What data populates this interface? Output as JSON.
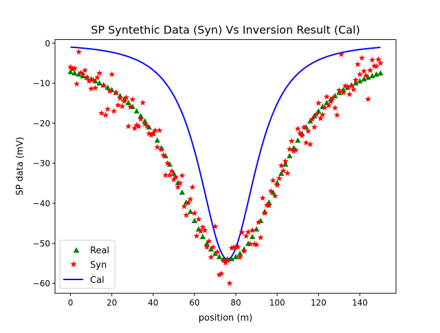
{
  "chart_data": {
    "type": "scatter",
    "title": "SP Syntethic Data (Syn) Vs Inversion Result (Cal)",
    "xlabel": "position (m)",
    "ylabel": "SP data (mV)",
    "xlim": [
      -7.5,
      157.5
    ],
    "ylim": [
      -62.5,
      0.9
    ],
    "x_ticks": [
      0,
      20,
      40,
      60,
      80,
      100,
      120,
      140
    ],
    "y_ticks": [
      0,
      -10,
      -20,
      -30,
      -40,
      -50,
      -60
    ],
    "grid": false,
    "legend_position": "lower-left",
    "legend": [
      "Real",
      "Syn",
      "Cal"
    ],
    "source": {
      "x0": 76,
      "K": 54,
      "x_half": 27.1,
      "q": 1.5
    },
    "series": [
      {
        "name": "Real",
        "marker": "triangle",
        "color": "#008000",
        "x": [
          0,
          2,
          4,
          6,
          8,
          10,
          12,
          14,
          16,
          18,
          20,
          22,
          24,
          26,
          28,
          30,
          32,
          34,
          36,
          38,
          40,
          42,
          44,
          46,
          48,
          50,
          52,
          54,
          56,
          58,
          60,
          62,
          64,
          66,
          68,
          70,
          72,
          74,
          76,
          78,
          80,
          82,
          84,
          86,
          88,
          90,
          92,
          94,
          96,
          98,
          100,
          102,
          104,
          106,
          108,
          110,
          112,
          114,
          116,
          118,
          120,
          122,
          124,
          126,
          128,
          130,
          132,
          134,
          136,
          138,
          140,
          142,
          144,
          146,
          148,
          150
        ],
        "y": [
          -7.2,
          -7.5,
          -7.8,
          -8.2,
          -8.6,
          -9.0,
          -9.5,
          -10.0,
          -10.5,
          -11.1,
          -11.7,
          -12.4,
          -13.2,
          -14.0,
          -14.9,
          -15.9,
          -17.0,
          -18.2,
          -19.5,
          -21.0,
          -22.6,
          -24.3,
          -26.2,
          -28.2,
          -30.3,
          -32.6,
          -34.9,
          -37.3,
          -39.8,
          -42.1,
          -44.4,
          -46.5,
          -48.4,
          -50.1,
          -51.5,
          -52.6,
          -53.4,
          -53.9,
          -54.0,
          -53.9,
          -53.4,
          -52.6,
          -51.5,
          -50.1,
          -48.4,
          -46.5,
          -44.4,
          -42.1,
          -39.8,
          -37.3,
          -34.9,
          -32.6,
          -30.3,
          -28.2,
          -26.2,
          -24.3,
          -22.6,
          -21.0,
          -19.5,
          -18.2,
          -17.0,
          -15.9,
          -14.9,
          -14.0,
          -13.2,
          -12.4,
          -11.7,
          -11.1,
          -10.5,
          -10.0,
          -9.5,
          -9.0,
          -8.6,
          -8.2,
          -7.8,
          -7.5
        ]
      },
      {
        "name": "Syn",
        "marker": "star",
        "color": "#ff0000",
        "x": [
          0,
          1,
          2,
          3,
          4,
          5,
          6,
          7,
          8,
          9,
          10,
          11,
          12,
          13,
          14,
          15,
          16,
          17,
          18,
          19,
          20,
          21,
          22,
          23,
          24,
          25,
          26,
          27,
          28,
          29,
          30,
          31,
          32,
          33,
          34,
          35,
          36,
          37,
          38,
          39,
          40,
          41,
          42,
          43,
          44,
          45,
          46,
          47,
          48,
          49,
          50,
          51,
          52,
          53,
          54,
          55,
          56,
          57,
          58,
          59,
          60,
          61,
          62,
          63,
          64,
          65,
          66,
          67,
          68,
          69,
          70,
          71,
          72,
          73,
          74,
          75,
          76,
          77,
          78,
          79,
          80,
          81,
          82,
          83,
          84,
          85,
          86,
          87,
          88,
          89,
          90,
          91,
          92,
          93,
          94,
          95,
          96,
          97,
          98,
          99,
          100,
          101,
          102,
          103,
          104,
          105,
          106,
          107,
          108,
          109,
          110,
          111,
          112,
          113,
          114,
          115,
          116,
          117,
          118,
          119,
          120,
          121,
          122,
          123,
          124,
          125,
          126,
          127,
          128,
          129,
          130,
          131,
          132,
          133,
          134,
          135,
          136,
          137,
          138,
          139,
          140,
          141,
          142,
          143,
          144,
          145,
          146,
          147,
          148,
          149,
          150
        ],
        "y": [
          -6.0,
          -6.5,
          -6.3,
          -10.2,
          -2.2,
          -7.4,
          -7.8,
          -6.8,
          -8.5,
          -9.5,
          -11.4,
          -9.2,
          -11.2,
          -8.6,
          -7.5,
          -17.5,
          -10.5,
          -18.0,
          -16.5,
          -12.0,
          -7.8,
          -17.0,
          -12.3,
          -15.5,
          -13.8,
          -15.8,
          -14.5,
          -13.6,
          -20.8,
          -15.9,
          -14.1,
          -21.3,
          -20.5,
          -20.8,
          -19.0,
          -14.9,
          -20.2,
          -20.7,
          -22.6,
          -23.0,
          -22.5,
          -21.8,
          -26.0,
          -21.8,
          -26.6,
          -28.0,
          -33.0,
          -30.0,
          -33.0,
          -32.0,
          -34.1,
          -33.5,
          -36.0,
          -35.0,
          -33.1,
          -40.8,
          -43.0,
          -39.9,
          -39.0,
          -36.0,
          -42.5,
          -48.2,
          -44.0,
          -47.0,
          -46.0,
          -46.8,
          -51.0,
          -49.5,
          -53.5,
          -51.0,
          -45.8,
          -52.2,
          -57.9,
          -57.6,
          -54.3,
          -54.9,
          -54.3,
          -60.0,
          -51.2,
          -51.0,
          -51.0,
          -50.9,
          -53.5,
          -47.3,
          -52.0,
          -48.2,
          -47.2,
          -50.2,
          -46.8,
          -50.2,
          -50.4,
          -44.8,
          -48.6,
          -38.7,
          -42.5,
          -40.5,
          -40.6,
          -37.0,
          -34.3,
          -38.2,
          -35.5,
          -33.8,
          -30.6,
          -31.9,
          -29.5,
          -32.5,
          -26.5,
          -24.5,
          -27.0,
          -26.7,
          -21.4,
          -22.5,
          -23.1,
          -21.0,
          -24.9,
          -22.0,
          -25.3,
          -19.0,
          -21.0,
          -17.8,
          -15.0,
          -18.8,
          -17.9,
          -16.1,
          -13.4,
          -15.6,
          -14.6,
          -13.7,
          -16.2,
          -18.0,
          -11.8,
          -2.8,
          -12.4,
          -10.7,
          -10.9,
          -12.8,
          -10.7,
          -11.6,
          -9.2,
          -5.3,
          -7.8,
          -3.7,
          -7.0,
          -8.1,
          -14.0,
          -6.8,
          -4.2,
          -5.7,
          -5.8,
          -4.1,
          -5.0
        ]
      },
      {
        "name": "Cal",
        "marker": "line",
        "color": "#0000ff"
      }
    ]
  }
}
